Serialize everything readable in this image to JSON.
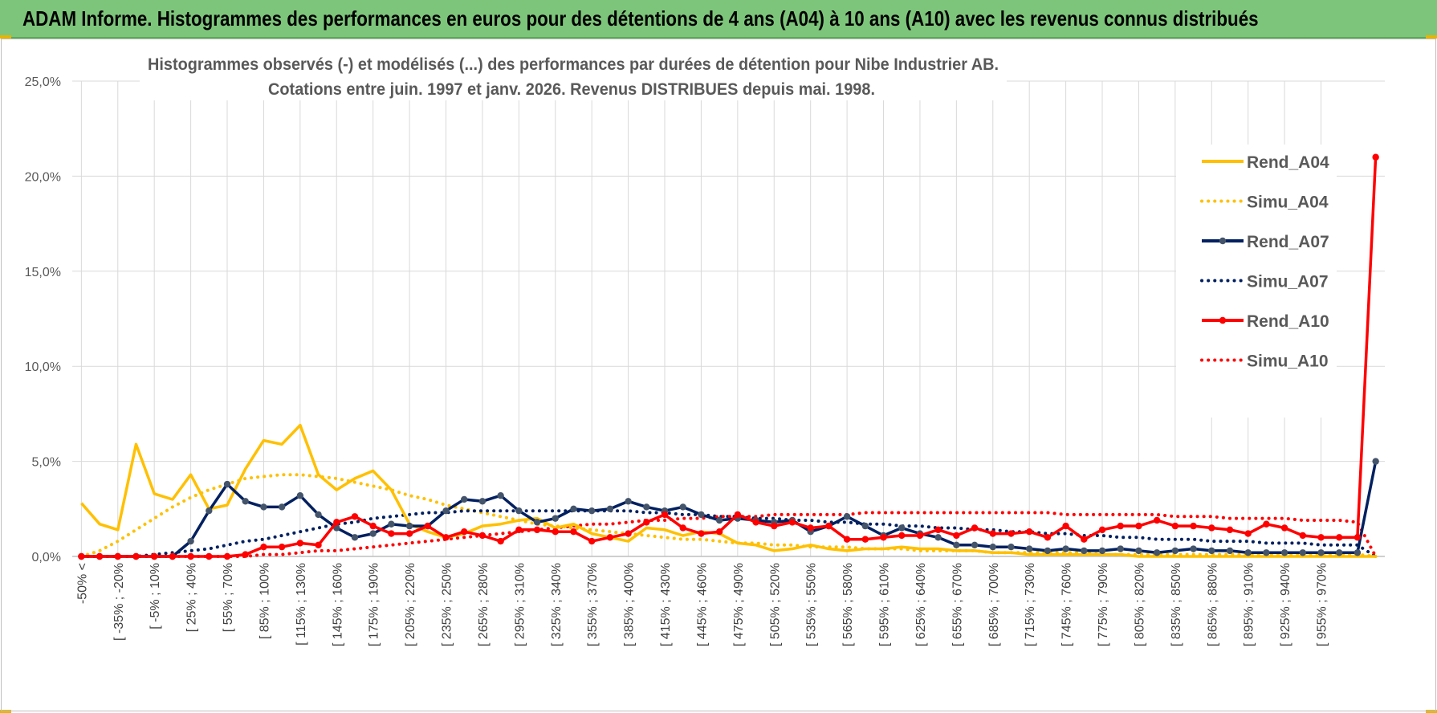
{
  "header": {
    "title": "ADAM Informe. Histogrammes des performances en euros pour des détentions de 4 ans (A04) à 10 ans (A10) avec les revenus connus distribués"
  },
  "chart_data": {
    "type": "line",
    "title_line1": "Histogrammes observés (-) et modélisés (...) des performances par durées de détention pour Nibe Industrier AB.",
    "title_line2": "Cotations entre juin. 1997 et janv. 2026. Revenus DISTRIBUES depuis mai. 1998.",
    "ylim": [
      0,
      25
    ],
    "y_ticks": [
      "0,0%",
      "5,0%",
      "10,0%",
      "15,0%",
      "20,0%",
      "25,0%"
    ],
    "grid": true,
    "legend_position": "right",
    "x_tick_labels": [
      "-50% <",
      "[ -35% ; -20%",
      "[ -5% ; 10%",
      "[ 25% ; 40%",
      "[ 55% ; 70%",
      "[ 85% ; 100%",
      "[ 115% ; 130%",
      "[ 145% ; 160%",
      "[ 175% ; 190%",
      "[ 205% ; 220%",
      "[ 235% ; 250%",
      "[ 265% ; 280%",
      "[ 295% ; 310%",
      "[ 325% ; 340%",
      "[ 355% ; 370%",
      "[ 385% ; 400%",
      "[ 415% ; 430%",
      "[ 445% ; 460%",
      "[ 475% ; 490%",
      "[ 505% ; 520%",
      "[ 535% ; 550%",
      "[ 565% ; 580%",
      "[ 595% ; 610%",
      "[ 625% ; 640%",
      "[ 655% ; 670%",
      "[ 685% ; 700%",
      "[ 715% ; 730%",
      "[ 745% ; 760%",
      "[ 775% ; 790%",
      "[ 805% ; 820%",
      "[ 835% ; 850%",
      "[ 865% ; 880%",
      "[ 895% ; 910%",
      "[ 925% ; 940%",
      "[ 955% ; 970%"
    ],
    "series": [
      {
        "name": "Rend_A04",
        "color": "#ffc000",
        "style": "solid",
        "markers": false,
        "values": [
          2.8,
          1.7,
          1.4,
          5.9,
          3.3,
          3.0,
          4.3,
          2.5,
          2.7,
          4.6,
          6.1,
          5.9,
          6.9,
          4.3,
          3.5,
          4.1,
          4.5,
          3.5,
          1.7,
          1.3,
          1.0,
          1.2,
          1.6,
          1.7,
          1.9,
          2.0,
          1.5,
          1.7,
          1.2,
          1.0,
          0.8,
          1.5,
          1.4,
          1.1,
          1.3,
          1.2,
          0.7,
          0.6,
          0.3,
          0.4,
          0.6,
          0.4,
          0.3,
          0.4,
          0.4,
          0.5,
          0.4,
          0.4,
          0.3,
          0.3,
          0.2,
          0.2,
          0.1,
          0.1,
          0.1,
          0.1,
          0.1,
          0.1,
          0.0,
          0.0,
          0.0,
          0.0,
          0.0,
          0.0,
          0.0,
          0.0,
          0.0,
          0.0,
          0.0,
          0.0,
          0.0,
          0.0
        ]
      },
      {
        "name": "Simu_A04",
        "color": "#ffc000",
        "style": "dotted",
        "markers": false,
        "values": [
          0.0,
          0.3,
          0.8,
          1.4,
          2.0,
          2.6,
          3.1,
          3.5,
          3.8,
          4.1,
          4.2,
          4.3,
          4.3,
          4.2,
          4.1,
          3.9,
          3.7,
          3.5,
          3.2,
          3.0,
          2.7,
          2.5,
          2.3,
          2.1,
          1.9,
          1.7,
          1.6,
          1.5,
          1.4,
          1.3,
          1.2,
          1.1,
          1.0,
          0.9,
          0.9,
          0.8,
          0.7,
          0.7,
          0.6,
          0.6,
          0.5,
          0.5,
          0.5,
          0.4,
          0.4,
          0.4,
          0.3,
          0.3,
          0.3,
          0.3,
          0.2,
          0.2,
          0.2,
          0.2,
          0.2,
          0.2,
          0.1,
          0.1,
          0.1,
          0.1,
          0.1,
          0.1,
          0.1,
          0.1,
          0.1,
          0.1,
          0.1,
          0.1,
          0.1,
          0.1,
          0.1,
          0.0
        ]
      },
      {
        "name": "Rend_A07",
        "color": "#002060",
        "style": "solid",
        "markers": true,
        "values": [
          0.0,
          0.0,
          0.0,
          0.0,
          0.0,
          0.0,
          0.8,
          2.4,
          3.8,
          2.9,
          2.6,
          2.6,
          3.2,
          2.2,
          1.5,
          1.0,
          1.2,
          1.7,
          1.6,
          1.6,
          2.4,
          3.0,
          2.9,
          3.2,
          2.4,
          1.8,
          2.0,
          2.5,
          2.4,
          2.5,
          2.9,
          2.6,
          2.4,
          2.6,
          2.2,
          1.9,
          2.0,
          1.9,
          1.8,
          1.9,
          1.3,
          1.6,
          2.1,
          1.6,
          1.1,
          1.5,
          1.2,
          1.0,
          0.6,
          0.6,
          0.5,
          0.5,
          0.4,
          0.3,
          0.4,
          0.3,
          0.3,
          0.4,
          0.3,
          0.2,
          0.3,
          0.4,
          0.3,
          0.3,
          0.2,
          0.2,
          0.2,
          0.2,
          0.2,
          0.2,
          0.2,
          5.0
        ]
      },
      {
        "name": "Simu_A07",
        "color": "#002060",
        "style": "dotted",
        "markers": false,
        "values": [
          0.0,
          0.0,
          0.0,
          0.0,
          0.1,
          0.2,
          0.3,
          0.4,
          0.6,
          0.8,
          0.9,
          1.1,
          1.3,
          1.5,
          1.7,
          1.8,
          2.0,
          2.1,
          2.2,
          2.3,
          2.3,
          2.4,
          2.4,
          2.4,
          2.4,
          2.4,
          2.4,
          2.4,
          2.4,
          2.4,
          2.4,
          2.3,
          2.3,
          2.2,
          2.2,
          2.1,
          2.1,
          2.0,
          2.0,
          1.9,
          1.9,
          1.8,
          1.8,
          1.7,
          1.7,
          1.6,
          1.6,
          1.5,
          1.5,
          1.4,
          1.4,
          1.3,
          1.3,
          1.2,
          1.2,
          1.1,
          1.1,
          1.0,
          1.0,
          0.9,
          0.9,
          0.9,
          0.8,
          0.8,
          0.8,
          0.7,
          0.7,
          0.7,
          0.6,
          0.6,
          0.6,
          0.0
        ]
      },
      {
        "name": "Rend_A10",
        "color": "#ff0000",
        "style": "solid",
        "markers": true,
        "values": [
          0.0,
          0.0,
          0.0,
          0.0,
          0.0,
          0.0,
          0.0,
          0.0,
          0.0,
          0.1,
          0.5,
          0.5,
          0.7,
          0.6,
          1.8,
          2.1,
          1.6,
          1.2,
          1.2,
          1.6,
          1.0,
          1.3,
          1.1,
          0.8,
          1.4,
          1.4,
          1.3,
          1.3,
          0.8,
          1.0,
          1.2,
          1.8,
          2.2,
          1.5,
          1.2,
          1.3,
          2.2,
          1.8,
          1.6,
          1.8,
          1.5,
          1.6,
          0.9,
          0.9,
          1.0,
          1.1,
          1.1,
          1.4,
          1.1,
          1.5,
          1.2,
          1.2,
          1.3,
          1.0,
          1.6,
          0.9,
          1.4,
          1.6,
          1.6,
          1.9,
          1.6,
          1.6,
          1.5,
          1.4,
          1.2,
          1.7,
          1.5,
          1.1,
          1.0,
          1.0,
          1.0,
          21.0
        ]
      },
      {
        "name": "Simu_A10",
        "color": "#ff0000",
        "style": "dotted",
        "markers": false,
        "values": [
          0.0,
          0.0,
          0.0,
          0.0,
          0.0,
          0.0,
          0.0,
          0.0,
          0.0,
          0.0,
          0.1,
          0.1,
          0.2,
          0.3,
          0.3,
          0.4,
          0.5,
          0.6,
          0.7,
          0.8,
          0.9,
          1.0,
          1.1,
          1.2,
          1.3,
          1.4,
          1.5,
          1.6,
          1.7,
          1.7,
          1.8,
          1.9,
          1.9,
          2.0,
          2.0,
          2.1,
          2.1,
          2.1,
          2.2,
          2.2,
          2.2,
          2.2,
          2.2,
          2.3,
          2.3,
          2.3,
          2.3,
          2.3,
          2.3,
          2.3,
          2.3,
          2.3,
          2.3,
          2.3,
          2.2,
          2.2,
          2.2,
          2.2,
          2.2,
          2.2,
          2.1,
          2.1,
          2.1,
          2.0,
          2.0,
          2.0,
          2.0,
          1.9,
          1.9,
          1.9,
          1.8,
          0.0
        ]
      }
    ]
  }
}
